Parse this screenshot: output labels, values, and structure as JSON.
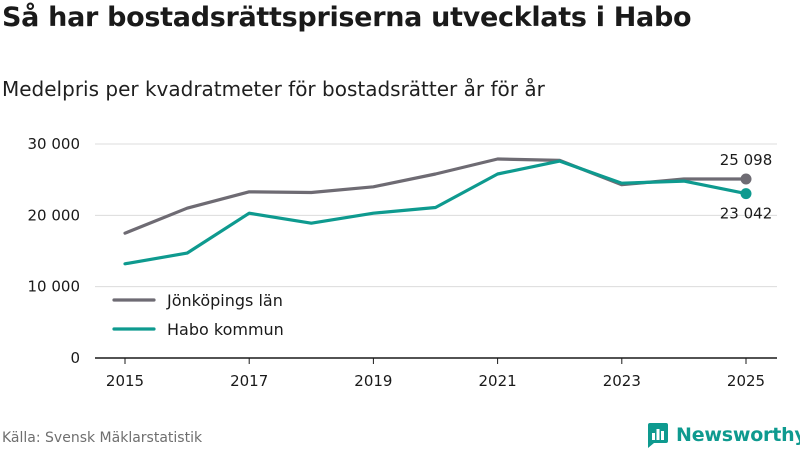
{
  "header": {
    "title": "Så har bostadsrättspriserna utvecklats i Habo",
    "subtitle": "Medelpris per kvadratmeter för bostadsrätter år för år"
  },
  "footer": {
    "source": "Källa: Svensk Mäklarstatistik",
    "brand": "Newsworthy"
  },
  "colors": {
    "jonkoping": "#6e6b73",
    "habo": "#0e9a8f",
    "axis": "#1a1a1a",
    "grid": "#dcdcdc",
    "text": "#1a1a1a"
  },
  "chart_data": {
    "type": "line",
    "title": "Så har bostadsrättspriserna utvecklats i Habo",
    "subtitle": "Medelpris per kvadratmeter för bostadsrätter år för år",
    "xlabel": "",
    "ylabel": "",
    "x": [
      2015,
      2016,
      2017,
      2018,
      2019,
      2020,
      2021,
      2022,
      2023,
      2024,
      2025
    ],
    "xlim": [
      2015,
      2025
    ],
    "ylim": [
      0,
      30000
    ],
    "xticks": [
      "2015",
      "2017",
      "2019",
      "2021",
      "2023",
      "2025"
    ],
    "yticks": [
      "0",
      "10 000",
      "20 000",
      "30 000"
    ],
    "grid": true,
    "legend_position": "bottom-left",
    "series": [
      {
        "name": "Jönköpings län",
        "color": "#6e6b73",
        "values": [
          17500,
          21000,
          23300,
          23200,
          24000,
          25800,
          27900,
          27700,
          24300,
          25100,
          25098
        ],
        "end_label": "25 098"
      },
      {
        "name": "Habo kommun",
        "color": "#0e9a8f",
        "values": [
          13200,
          14700,
          20300,
          18900,
          20300,
          21100,
          25800,
          27600,
          24500,
          24800,
          23042
        ],
        "end_label": "23 042"
      }
    ]
  }
}
